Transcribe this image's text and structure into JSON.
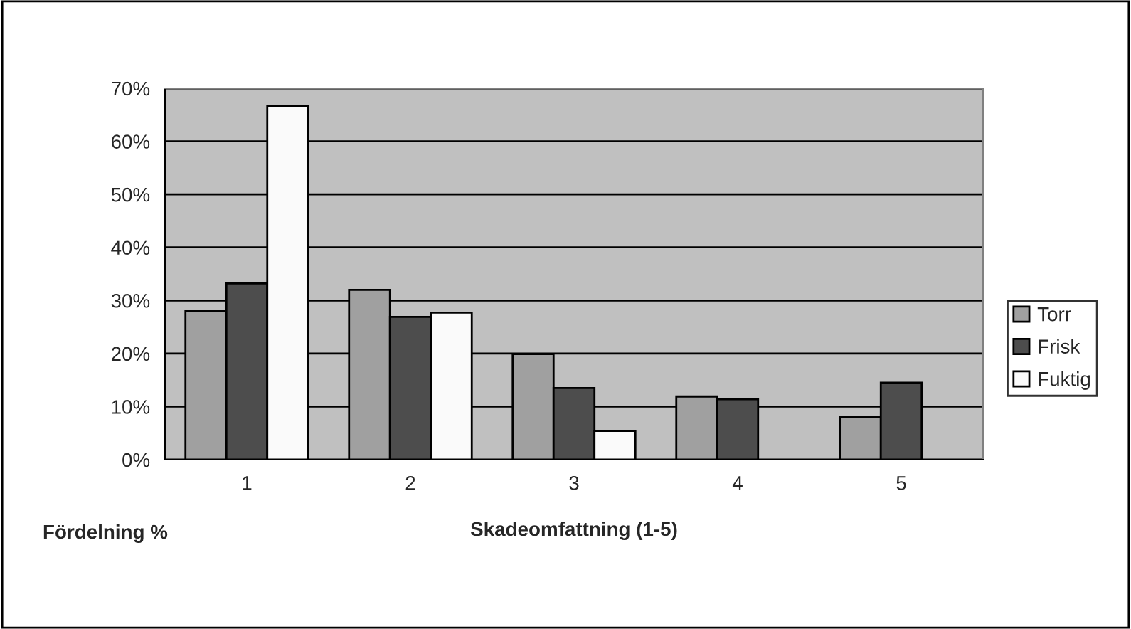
{
  "chart_data": {
    "type": "bar",
    "xlabel": "Skadeomfattning (1-5)",
    "ylabel": "Fördelning %",
    "categories": [
      "1",
      "2",
      "3",
      "4",
      "5"
    ],
    "series": [
      {
        "name": "Torr",
        "color": "#a0a0a0",
        "values": [
          28.0,
          32.0,
          19.9,
          11.9,
          8.0
        ]
      },
      {
        "name": "Frisk",
        "color": "#4d4d4d",
        "values": [
          33.2,
          26.9,
          13.5,
          11.4,
          14.5
        ]
      },
      {
        "name": "Fuktig",
        "color": "#fafafa",
        "values": [
          66.7,
          27.7,
          5.4,
          null,
          null
        ]
      }
    ],
    "ylim": [
      0,
      70
    ],
    "yticks": [
      {
        "value": 0,
        "label": "0%"
      },
      {
        "value": 10,
        "label": "10%"
      },
      {
        "value": 20,
        "label": "20%"
      },
      {
        "value": 30,
        "label": "30%"
      },
      {
        "value": 40,
        "label": "40%"
      },
      {
        "value": 50,
        "label": "50%"
      },
      {
        "value": 60,
        "label": "60%"
      },
      {
        "value": 70,
        "label": "70%"
      }
    ],
    "grid": "y",
    "legend": "right"
  }
}
